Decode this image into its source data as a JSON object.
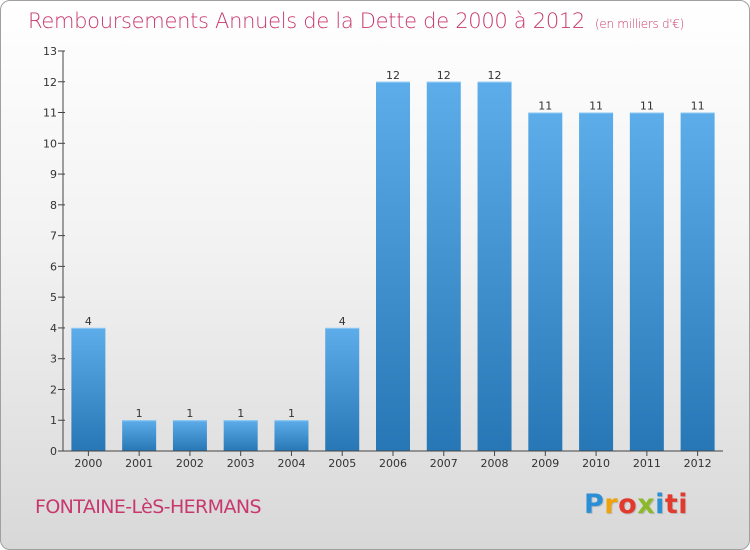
{
  "header": {
    "title": "Remboursements Annuels de la Dette de 2000 à 2012",
    "unit": "(en milliers d'€)"
  },
  "footer": {
    "commune": "FONTAINE-LèS-HERMANS",
    "logo_letters": [
      "P",
      "r",
      "o",
      "x",
      "i",
      "ti"
    ]
  },
  "colors": {
    "title": "#c8386e",
    "bar_top": "#5dadea",
    "bar_bottom": "#2777b6",
    "axis": "#444444"
  },
  "chart_data": {
    "type": "bar",
    "title": "Remboursements Annuels de la Dette de 2000 à 2012",
    "xlabel": "",
    "ylabel": "",
    "categories": [
      "2000",
      "2001",
      "2002",
      "2003",
      "2004",
      "2005",
      "2006",
      "2007",
      "2008",
      "2009",
      "2010",
      "2011",
      "2012"
    ],
    "values": [
      4,
      1,
      1,
      1,
      1,
      4,
      12,
      12,
      12,
      11,
      11,
      11,
      11
    ],
    "ylim": [
      0,
      13
    ],
    "yticks": [
      0,
      1,
      2,
      3,
      4,
      5,
      6,
      7,
      8,
      9,
      10,
      11,
      12,
      13
    ],
    "grid": false,
    "legend": "none"
  }
}
